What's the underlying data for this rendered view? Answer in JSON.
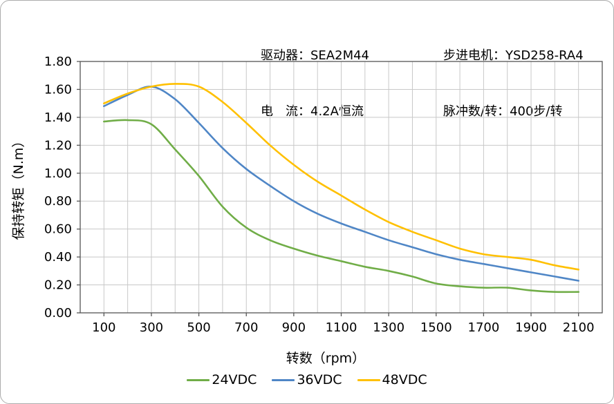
{
  "header": {
    "driver": "驱动器：SEA2M44",
    "current": "电　流：4.2A恒流",
    "motor": "步进电机：YSD258-RA4",
    "pulses": "脉冲数/转：400步/转"
  },
  "chart_data": {
    "type": "line",
    "title": "",
    "xlabel": "转数（rpm）",
    "ylabel": "保持转矩（N.m）",
    "xlim": [
      0,
      2200
    ],
    "ylim": [
      0,
      1.8
    ],
    "grid": true,
    "legend_position": "bottom",
    "x_grid_step": 100,
    "y_grid_step": 0.2,
    "x_tick_values": [
      100,
      300,
      500,
      700,
      900,
      1100,
      1300,
      1500,
      1700,
      1900,
      2100
    ],
    "y_tick_labels": [
      "0.00",
      "0.20",
      "0.40",
      "0.60",
      "0.80",
      "1.00",
      "1.20",
      "1.40",
      "1.60",
      "1.80"
    ],
    "x": [
      100,
      200,
      300,
      400,
      500,
      600,
      700,
      800,
      900,
      1000,
      1100,
      1200,
      1300,
      1400,
      1500,
      1600,
      1700,
      1800,
      1900,
      2000,
      2100
    ],
    "series": [
      {
        "name": "24VDC",
        "color": "#70AD47",
        "values": [
          1.37,
          1.38,
          1.35,
          1.17,
          0.98,
          0.76,
          0.61,
          0.52,
          0.46,
          0.41,
          0.37,
          0.33,
          0.3,
          0.26,
          0.21,
          0.19,
          0.18,
          0.18,
          0.16,
          0.15,
          0.15
        ]
      },
      {
        "name": "36VDC",
        "color": "#4F86C6",
        "values": [
          1.48,
          1.56,
          1.62,
          1.53,
          1.36,
          1.18,
          1.03,
          0.91,
          0.8,
          0.71,
          0.64,
          0.58,
          0.52,
          0.47,
          0.42,
          0.38,
          0.35,
          0.32,
          0.29,
          0.26,
          0.23
        ]
      },
      {
        "name": "48VDC",
        "color": "#FFC000",
        "values": [
          1.5,
          1.57,
          1.62,
          1.64,
          1.62,
          1.51,
          1.36,
          1.2,
          1.06,
          0.94,
          0.84,
          0.74,
          0.65,
          0.58,
          0.52,
          0.46,
          0.42,
          0.4,
          0.38,
          0.34,
          0.31
        ]
      }
    ]
  }
}
